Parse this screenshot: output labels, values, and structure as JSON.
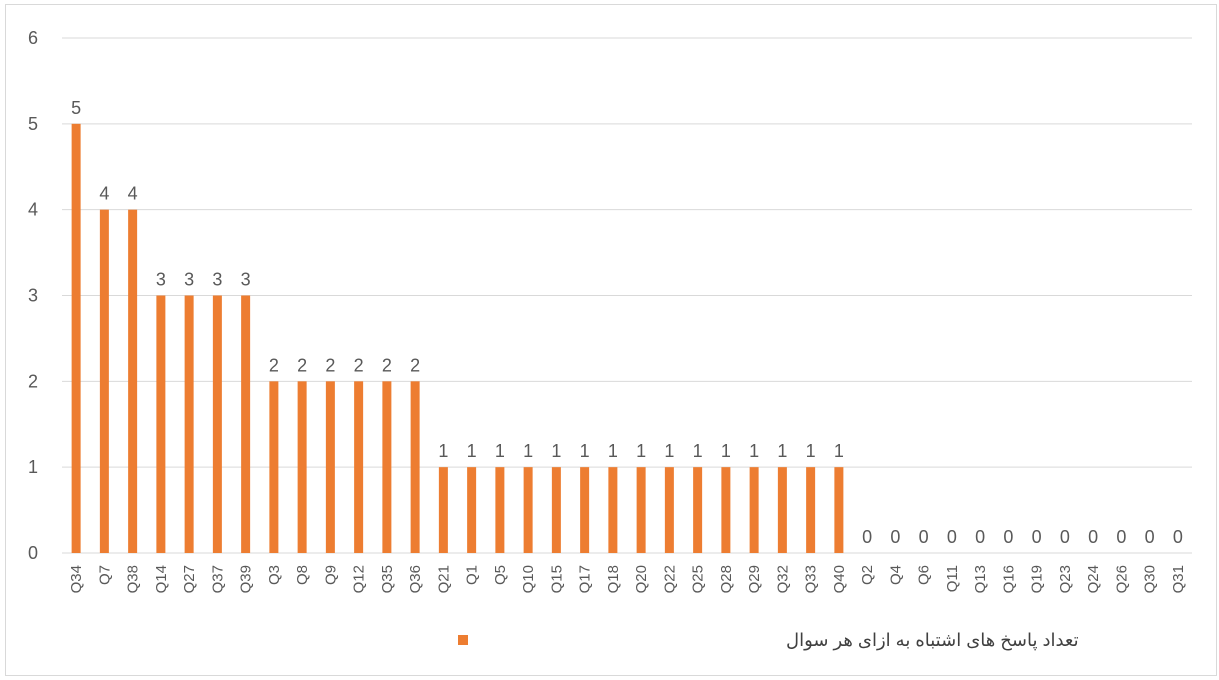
{
  "chart_data": {
    "type": "bar",
    "title": "",
    "xlabel": "",
    "ylabel": "",
    "ylim": [
      0,
      6
    ],
    "yticks": [
      0,
      1,
      2,
      3,
      4,
      5,
      6
    ],
    "grid": true,
    "legend_position": "bottom",
    "bar_color": "#ED7D31",
    "categories": [
      "Q34",
      "Q7",
      "Q38",
      "Q14",
      "Q27",
      "Q37",
      "Q39",
      "Q3",
      "Q8",
      "Q9",
      "Q12",
      "Q35",
      "Q36",
      "Q21",
      "Q1",
      "Q5",
      "Q10",
      "Q15",
      "Q17",
      "Q18",
      "Q20",
      "Q22",
      "Q25",
      "Q28",
      "Q29",
      "Q32",
      "Q33",
      "Q40",
      "Q2",
      "Q4",
      "Q6",
      "Q11",
      "Q13",
      "Q16",
      "Q19",
      "Q23",
      "Q24",
      "Q26",
      "Q30",
      "Q31"
    ],
    "series": [
      {
        "name": "تعداد پاسخ های اشتباه به ازای هر سوال",
        "values": [
          5,
          4,
          4,
          3,
          3,
          3,
          3,
          2,
          2,
          2,
          2,
          2,
          2,
          1,
          1,
          1,
          1,
          1,
          1,
          1,
          1,
          1,
          1,
          1,
          1,
          1,
          1,
          1,
          0,
          0,
          0,
          0,
          0,
          0,
          0,
          0,
          0,
          0,
          0,
          0
        ]
      }
    ]
  }
}
